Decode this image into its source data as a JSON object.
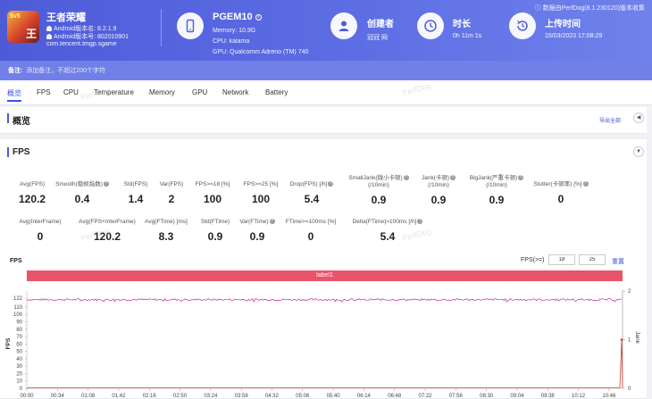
{
  "header": {
    "app_name": "王者荣耀",
    "android_version": "Android版本名: 8.2.1.9",
    "android_code": "Android版本号: 802010901",
    "package": "com.tencent.tmgp.sgame",
    "device_name": "PGEM10",
    "memory": "Memory: 10.9G",
    "cpu": "CPU: kalama",
    "gpu": "GPU: Qualcomm Adreno (TM) 740",
    "creator_label": "创建者",
    "creator_value": "冠冠 网",
    "duration_label": "时长",
    "duration_value": "0h 11m 1s",
    "upload_label": "上传时间",
    "upload_value": "15/03/2023 17:08:29",
    "source_note": "数据由PerfDog(8.1.230120)版本收集"
  },
  "remark": {
    "label": "备注:",
    "placeholder": "添加备注，不超过200个字符"
  },
  "tabs": [
    "概览",
    "FPS",
    "CPU",
    "Temperature",
    "Memory",
    "GPU",
    "Network",
    "Battery"
  ],
  "overview": {
    "title": "概览",
    "export_label": "导出全部"
  },
  "fps_section": {
    "title": "FPS",
    "row1": [
      {
        "label": "Avg(FPS)",
        "value": "120.2"
      },
      {
        "label": "Smooth(稳帧指数)",
        "value": "0.4",
        "help": true
      },
      {
        "label": "Std(FPS)",
        "value": "1.4"
      },
      {
        "label": "Var(FPS)",
        "value": "2"
      },
      {
        "label": "FPS>=18 [%]",
        "value": "100"
      },
      {
        "label": "FPS>=25 [%]",
        "value": "100"
      },
      {
        "label": "Drop(FPS) [/h]",
        "value": "5.4",
        "help": true
      },
      {
        "label": "SmallJank(微小卡顿)\n(/10min)",
        "value": "0.9",
        "help": true
      },
      {
        "label": "Jank(卡顿)\n(/10min)",
        "value": "0.9",
        "help": true
      },
      {
        "label": "BigJank(严重卡顿)\n(/10min)",
        "value": "0.9",
        "help": true
      },
      {
        "label": "Stutter(卡顿率) [%]",
        "value": "0",
        "help": true
      }
    ],
    "row2": [
      {
        "label": "Avg(InterFrame)",
        "value": "0"
      },
      {
        "label": "Avg(FPS+InterFrame)",
        "value": "120.2"
      },
      {
        "label": "Avg(FTime) [ms]",
        "value": "8.3"
      },
      {
        "label": "Std(FTime)",
        "value": "0.9"
      },
      {
        "label": "Var(FTime)",
        "value": "0.9",
        "help": true
      },
      {
        "label": "FTime>=100ms [%]",
        "value": "0"
      },
      {
        "label": "Delta(FTime)>100ms [/h]",
        "value": "5.4",
        "help": true
      }
    ]
  },
  "chart_controls": {
    "chart_title": "FPS",
    "fps_ge_label": "FPS(>=)",
    "threshold1": "18",
    "threshold2": "25",
    "reset_label": "重置"
  },
  "watermark": "PerfDog",
  "colors": {
    "header": "#5566e0",
    "accent": "#3f51d8",
    "fps_line": "#c0289a",
    "jank_line": "#d04030",
    "label_band": "#e9546b"
  },
  "chart_data": {
    "type": "line",
    "label_band": "label1",
    "ylabel": "FPS",
    "y2label": "Jank",
    "ylim": [
      0,
      122
    ],
    "yticks": [
      0,
      10,
      20,
      30,
      40,
      50,
      60,
      70,
      80,
      90,
      100,
      110,
      122
    ],
    "y2lim": [
      0,
      2
    ],
    "y2ticks": [
      0,
      1,
      2
    ],
    "x_ticks": [
      "00:00",
      "00:34",
      "01:08",
      "01:42",
      "02:16",
      "02:50",
      "03:24",
      "03:58",
      "04:32",
      "05:06",
      "05:40",
      "06:14",
      "06:48",
      "07:22",
      "07:56",
      "08:30",
      "09:04",
      "09:38",
      "10:12",
      "10:46"
    ],
    "x_range_seconds": [
      0,
      661
    ],
    "series": [
      {
        "name": "FPS",
        "approx_value": 120,
        "min": 117,
        "max": 122
      },
      {
        "name": "Jank",
        "baseline": 0,
        "spike_at": "10:58",
        "spike_value": 1
      }
    ]
  }
}
